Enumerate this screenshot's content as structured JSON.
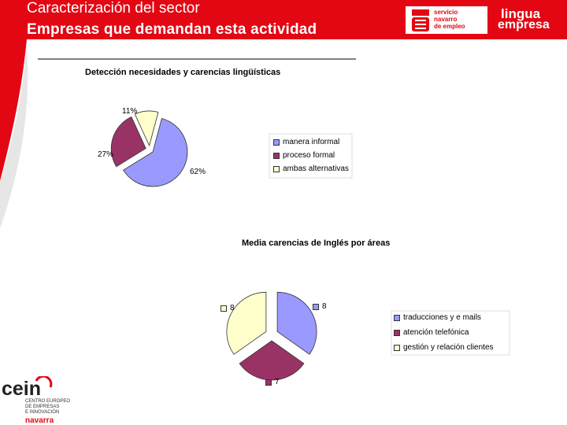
{
  "header": {
    "title_line1": "Caracterización del sector",
    "title_line2": "Empresas que demandan esta actividad",
    "logo_servicio": [
      "servicio",
      "navarro",
      "de empleo"
    ],
    "logo_lingua": [
      "lingua",
      "empresa"
    ]
  },
  "footer_logo": {
    "name": "cein",
    "lines": [
      "CENTRO EUROPEO",
      "DE EMPRESAS",
      "E INNOVACIÓN"
    ],
    "region": "navarra"
  },
  "chart_data": [
    {
      "type": "pie",
      "title": "Detección necesidades y carencias lingüísticas",
      "categories": [
        "manera informal",
        "proceso formal",
        "ambas alternativas"
      ],
      "values": [
        62,
        27,
        11
      ],
      "data_labels": [
        "62%",
        "27%",
        "11%"
      ],
      "colors": [
        "#9999ff",
        "#993366",
        "#ffffcc"
      ],
      "legend": "right"
    },
    {
      "type": "pie",
      "title": "Media carencias de Inglés por áreas",
      "categories": [
        "traducciones y e mails",
        "atención telefónica",
        "gestión y relación clientes"
      ],
      "values": [
        8,
        7,
        8
      ],
      "data_labels": [
        "8",
        "7",
        "8"
      ],
      "colors": [
        "#9999ff",
        "#993366",
        "#ffffcc"
      ],
      "legend": "right"
    }
  ]
}
